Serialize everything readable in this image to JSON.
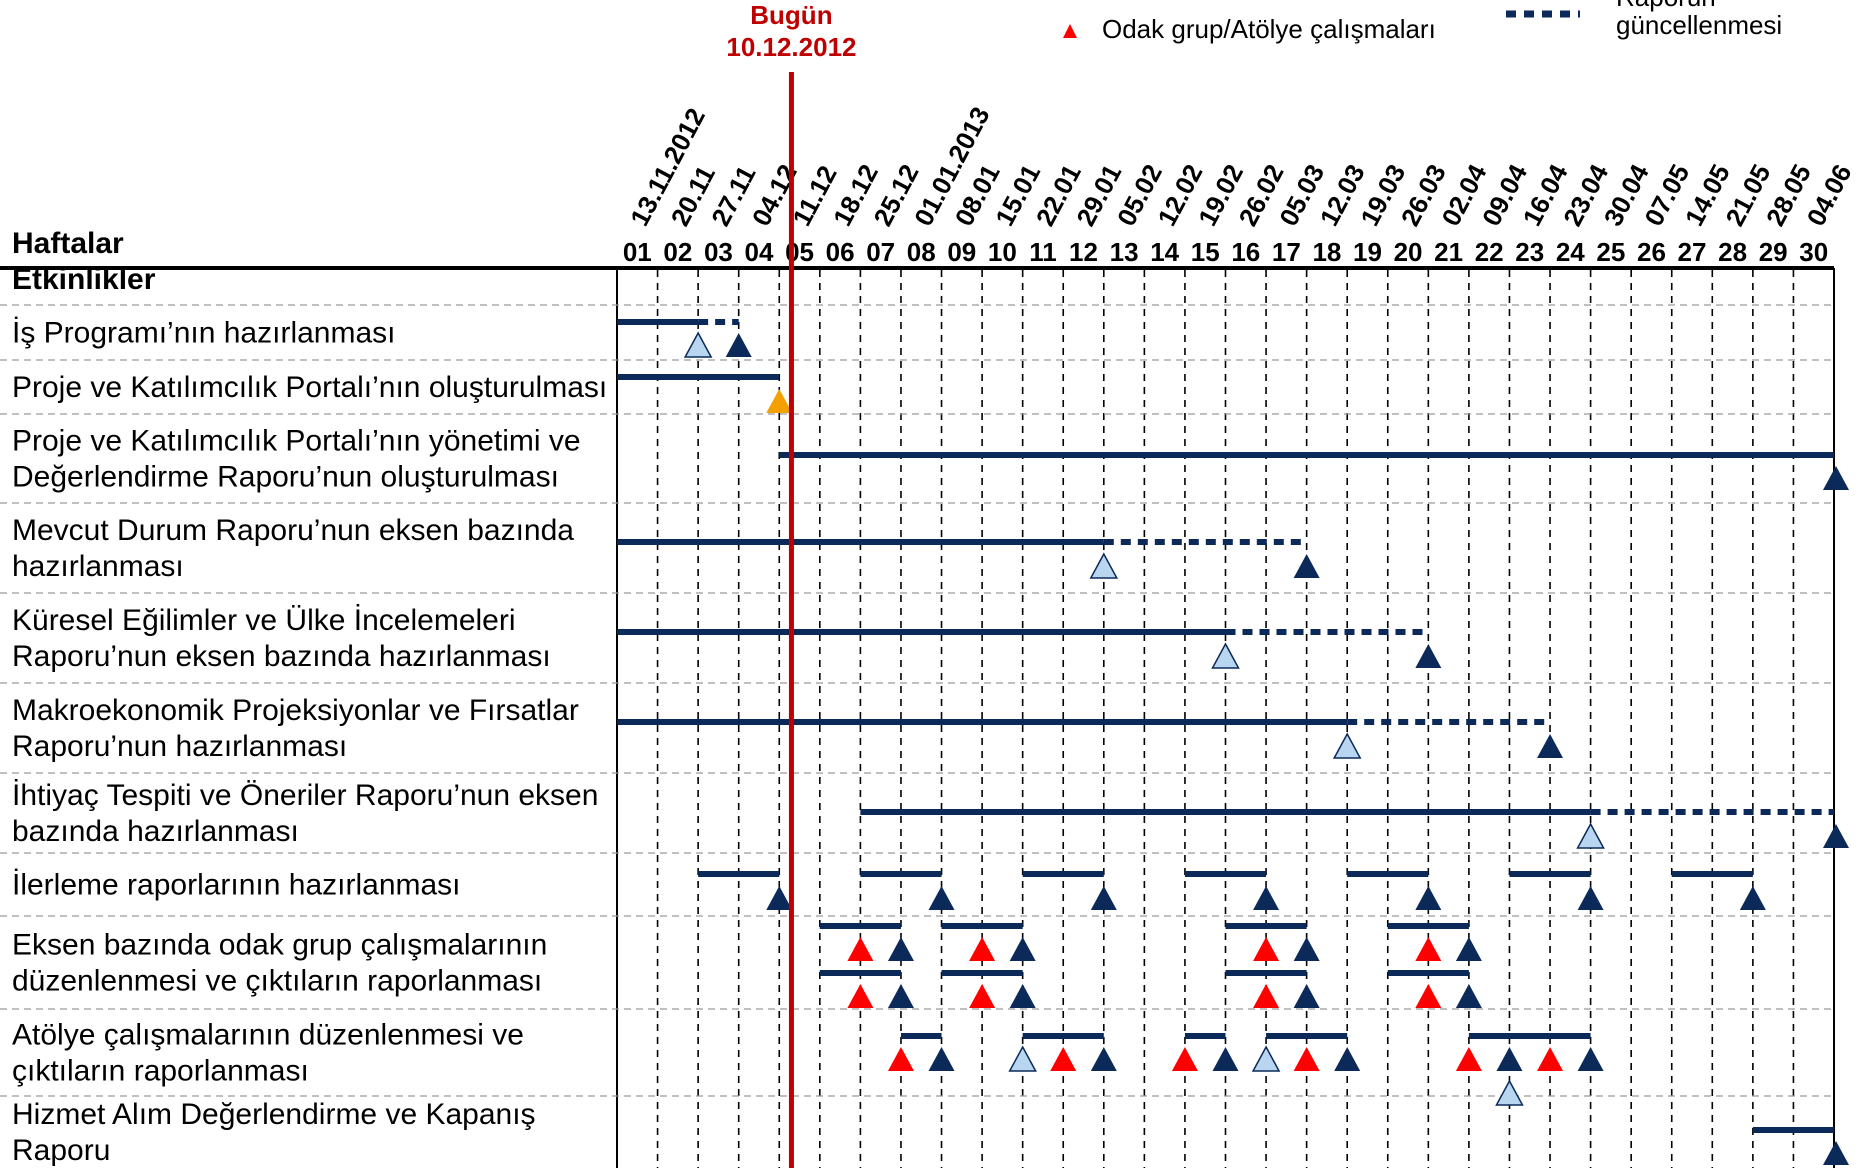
{
  "header": {
    "weeks_label": "Haftalar",
    "activities_label": "Etkinlikler"
  },
  "today": {
    "label": "Bugün",
    "date": "10.12.2012",
    "week_pos": 4.3
  },
  "legend": {
    "focus_group": "Odak grup/Atölye çalışmaları",
    "report_update_line1": "Raporun",
    "report_update_line2": "güncellenmesi"
  },
  "colors": {
    "bar": "#0b2a5a",
    "today_line": "#c00000",
    "red_marker": "#ff0000",
    "light_marker": "#b8d6ef",
    "orange_marker": "#f2a100",
    "grid": "#9a9a9a"
  },
  "weeks": [
    "01",
    "02",
    "03",
    "04",
    "05",
    "06",
    "07",
    "08",
    "09",
    "10",
    "11",
    "12",
    "13",
    "14",
    "15",
    "16",
    "17",
    "18",
    "19",
    "20",
    "21",
    "22",
    "23",
    "24",
    "25",
    "26",
    "27",
    "28",
    "29",
    "30"
  ],
  "dates": [
    "13.11.2012",
    "20.11",
    "27.11",
    "04.12",
    "11.12",
    "18.12",
    "25.12",
    "01.01.2013",
    "08.01",
    "15.01",
    "22.01",
    "29.01",
    "05.02",
    "12.02",
    "19.02",
    "26.02",
    "05.03",
    "12.03",
    "19.03",
    "26.03",
    "02.04",
    "09.04",
    "16.04",
    "23.04",
    "30.04",
    "07.05",
    "14.05",
    "21.05",
    "28.05",
    "04.06"
  ],
  "activities": [
    {
      "label": [
        "İş Programı’nın hazırlanması"
      ],
      "bars": [
        {
          "s": 0,
          "e": 2,
          "t": "solid",
          "l": 0
        },
        {
          "s": 2,
          "e": 3,
          "t": "dash",
          "l": 0
        }
      ],
      "markers": [
        {
          "w": 2,
          "k": "light",
          "l": 0
        },
        {
          "w": 3,
          "k": "dark",
          "l": 0
        }
      ]
    },
    {
      "label": [
        "Proje ve Katılımcılık Portalı’nın oluşturulması"
      ],
      "bars": [
        {
          "s": 0,
          "e": 4,
          "t": "solid",
          "l": 0
        }
      ],
      "markers": [
        {
          "w": 4,
          "k": "orange",
          "l": 0
        }
      ]
    },
    {
      "label": [
        "Proje ve Katılımcılık Portalı’nın yönetimi ve",
        "Değerlendirme Raporu’nun oluşturulması"
      ],
      "bars": [
        {
          "s": 4,
          "e": 30,
          "t": "solid",
          "l": 0
        }
      ],
      "markers": [
        {
          "w": 30,
          "k": "dark",
          "l": 0
        }
      ]
    },
    {
      "label": [
        "Mevcut Durum Raporu’nun eksen bazında",
        "hazırlanması"
      ],
      "bars": [
        {
          "s": 0,
          "e": 12,
          "t": "solid",
          "l": 0
        },
        {
          "s": 12,
          "e": 17,
          "t": "dash",
          "l": 0
        }
      ],
      "markers": [
        {
          "w": 12,
          "k": "light",
          "l": 0
        },
        {
          "w": 17,
          "k": "dark",
          "l": 0
        }
      ]
    },
    {
      "label": [
        "Küresel Eğilimler ve Ülke İncelemeleri",
        "Raporu’nun eksen bazında hazırlanması"
      ],
      "bars": [
        {
          "s": 0,
          "e": 15,
          "t": "solid",
          "l": 0
        },
        {
          "s": 15,
          "e": 20,
          "t": "dash",
          "l": 0
        }
      ],
      "markers": [
        {
          "w": 15,
          "k": "light",
          "l": 0
        },
        {
          "w": 20,
          "k": "dark",
          "l": 0
        }
      ]
    },
    {
      "label": [
        "Makroekonomik Projeksiyonlar ve Fırsatlar",
        "Raporu’nun hazırlanması"
      ],
      "bars": [
        {
          "s": 0,
          "e": 18,
          "t": "solid",
          "l": 0
        },
        {
          "s": 18,
          "e": 23,
          "t": "dash",
          "l": 0
        }
      ],
      "markers": [
        {
          "w": 18,
          "k": "light",
          "l": 0
        },
        {
          "w": 23,
          "k": "dark",
          "l": 0
        }
      ]
    },
    {
      "label": [
        "İhtiyaç Tespiti ve Öneriler Raporu’nun eksen",
        "bazında hazırlanması"
      ],
      "bars": [
        {
          "s": 6,
          "e": 24,
          "t": "solid",
          "l": 0
        },
        {
          "s": 24,
          "e": 30,
          "t": "dash",
          "l": 0
        }
      ],
      "markers": [
        {
          "w": 24,
          "k": "light",
          "l": 0
        },
        {
          "w": 30,
          "k": "dark",
          "l": 0
        }
      ]
    },
    {
      "label": [
        "İlerleme raporlarının hazırlanması"
      ],
      "bars": [
        {
          "s": 2,
          "e": 4,
          "t": "solid",
          "l": 0
        },
        {
          "s": 6,
          "e": 8,
          "t": "solid",
          "l": 0
        },
        {
          "s": 10,
          "e": 12,
          "t": "solid",
          "l": 0
        },
        {
          "s": 14,
          "e": 16,
          "t": "solid",
          "l": 0
        },
        {
          "s": 18,
          "e": 20,
          "t": "solid",
          "l": 0
        },
        {
          "s": 22,
          "e": 24,
          "t": "solid",
          "l": 0
        },
        {
          "s": 26,
          "e": 28,
          "t": "solid",
          "l": 0
        }
      ],
      "markers": [
        {
          "w": 4,
          "k": "dark",
          "l": 0
        },
        {
          "w": 8,
          "k": "dark",
          "l": 0
        },
        {
          "w": 12,
          "k": "dark",
          "l": 0
        },
        {
          "w": 16,
          "k": "dark",
          "l": 0
        },
        {
          "w": 20,
          "k": "dark",
          "l": 0
        },
        {
          "w": 24,
          "k": "dark",
          "l": 0
        },
        {
          "w": 28,
          "k": "dark",
          "l": 0
        }
      ]
    },
    {
      "label": [
        "Eksen bazında odak grup çalışmalarının",
        "düzenlenmesi ve çıktıların raporlanması"
      ],
      "bars": [
        {
          "s": 5,
          "e": 7,
          "t": "solid",
          "l": 0
        },
        {
          "s": 8,
          "e": 10,
          "t": "solid",
          "l": 0
        },
        {
          "s": 15,
          "e": 17,
          "t": "solid",
          "l": 0
        },
        {
          "s": 19,
          "e": 21,
          "t": "solid",
          "l": 0
        },
        {
          "s": 5,
          "e": 7,
          "t": "solid",
          "l": 1
        },
        {
          "s": 8,
          "e": 10,
          "t": "solid",
          "l": 1
        },
        {
          "s": 15,
          "e": 17,
          "t": "solid",
          "l": 1
        },
        {
          "s": 19,
          "e": 21,
          "t": "solid",
          "l": 1
        }
      ],
      "markers": [
        {
          "w": 6,
          "k": "red",
          "l": 0
        },
        {
          "w": 7,
          "k": "dark",
          "l": 0
        },
        {
          "w": 9,
          "k": "red",
          "l": 0
        },
        {
          "w": 10,
          "k": "dark",
          "l": 0
        },
        {
          "w": 16,
          "k": "red",
          "l": 0
        },
        {
          "w": 17,
          "k": "dark",
          "l": 0
        },
        {
          "w": 20,
          "k": "red",
          "l": 0
        },
        {
          "w": 21,
          "k": "dark",
          "l": 0
        },
        {
          "w": 6,
          "k": "red",
          "l": 1
        },
        {
          "w": 7,
          "k": "dark",
          "l": 1
        },
        {
          "w": 9,
          "k": "red",
          "l": 1
        },
        {
          "w": 10,
          "k": "dark",
          "l": 1
        },
        {
          "w": 16,
          "k": "red",
          "l": 1
        },
        {
          "w": 17,
          "k": "dark",
          "l": 1
        },
        {
          "w": 20,
          "k": "red",
          "l": 1
        },
        {
          "w": 21,
          "k": "dark",
          "l": 1
        }
      ]
    },
    {
      "label": [
        "Atölye çalışmalarının düzenlenmesi ve",
        "çıktıların raporlanması"
      ],
      "bars": [
        {
          "s": 7,
          "e": 8,
          "t": "solid",
          "l": 0
        },
        {
          "s": 10,
          "e": 12,
          "t": "solid",
          "l": 0
        },
        {
          "s": 14,
          "e": 15,
          "t": "solid",
          "l": 0
        },
        {
          "s": 16,
          "e": 18,
          "t": "solid",
          "l": 0
        },
        {
          "s": 21,
          "e": 24,
          "t": "solid",
          "l": 0
        }
      ],
      "markers": [
        {
          "w": 7,
          "k": "red",
          "l": 0
        },
        {
          "w": 8,
          "k": "dark",
          "l": 0
        },
        {
          "w": 10,
          "k": "light",
          "l": 0
        },
        {
          "w": 11,
          "k": "red",
          "l": 0
        },
        {
          "w": 12,
          "k": "dark",
          "l": 0
        },
        {
          "w": 14,
          "k": "red",
          "l": 0
        },
        {
          "w": 15,
          "k": "dark",
          "l": 0
        },
        {
          "w": 16,
          "k": "light",
          "l": 0
        },
        {
          "w": 17,
          "k": "red",
          "l": 0
        },
        {
          "w": 18,
          "k": "dark",
          "l": 0
        },
        {
          "w": 21,
          "k": "red",
          "l": 0
        },
        {
          "w": 22,
          "k": "dark",
          "l": 0
        },
        {
          "w": 22,
          "k": "light",
          "l": 1
        },
        {
          "w": 23,
          "k": "red",
          "l": 0
        },
        {
          "w": 24,
          "k": "dark",
          "l": 0
        }
      ]
    },
    {
      "label": [
        "Hizmet Alım Değerlendirme ve Kapanış",
        "Raporu"
      ],
      "bars": [
        {
          "s": 28,
          "e": 30,
          "t": "solid",
          "l": 0
        }
      ],
      "markers": [
        {
          "w": 30,
          "k": "dark",
          "l": 0
        }
      ]
    }
  ]
}
